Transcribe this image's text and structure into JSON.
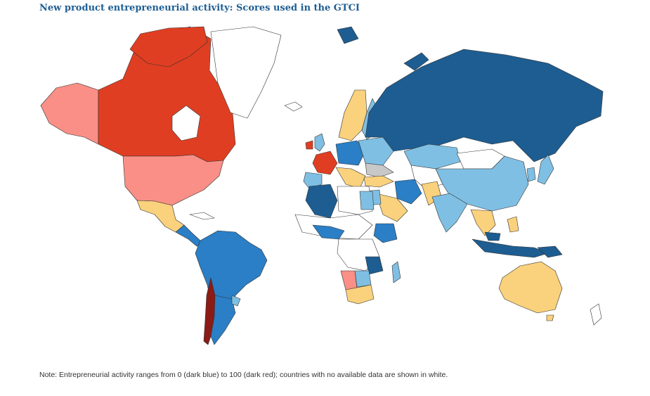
{
  "title": "New product entrepreneurial activity: Scores used in the GTCI",
  "note": "Note: Entrepreneurial activity ranges from 0 (dark blue) to 100 (dark red); countries with no available data are shown in white.",
  "colors": {
    "dark_blue": "#1d5d91",
    "mid_blue": "#2a7fc6",
    "light_blue": "#7fbfe3",
    "yellow": "#fad17c",
    "pink": "#f98f86",
    "red": "#e03e22",
    "dark_red": "#8c1b16",
    "no_data": "#ffffff",
    "grey": "#c8c8c8"
  }
}
